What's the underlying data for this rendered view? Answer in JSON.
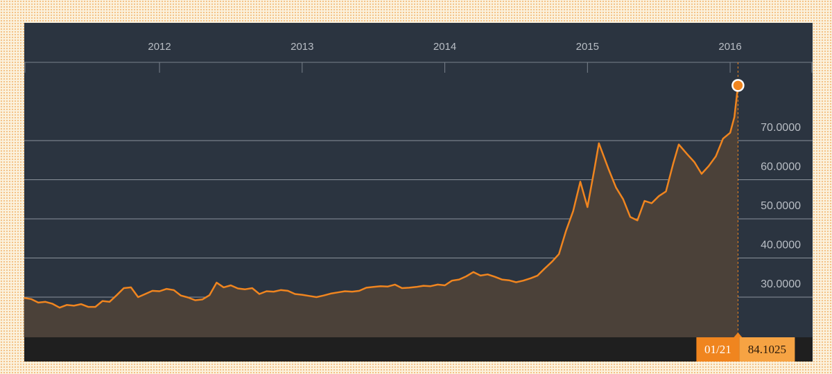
{
  "chart_data": {
    "type": "area",
    "color": "#f0851f",
    "fill_color": "#4b4139",
    "x": [
      2011.05,
      2011.1,
      2011.15,
      2011.2,
      2011.25,
      2011.3,
      2011.35,
      2011.4,
      2011.45,
      2011.5,
      2011.55,
      2011.6,
      2011.65,
      2011.7,
      2011.75,
      2011.8,
      2011.85,
      2011.9,
      2011.95,
      2012.0,
      2012.05,
      2012.1,
      2012.15,
      2012.2,
      2012.25,
      2012.3,
      2012.35,
      2012.4,
      2012.45,
      2012.5,
      2012.55,
      2012.6,
      2012.65,
      2012.7,
      2012.75,
      2012.8,
      2012.85,
      2012.9,
      2012.95,
      2013.0,
      2013.05,
      2013.1,
      2013.15,
      2013.2,
      2013.25,
      2013.3,
      2013.35,
      2013.4,
      2013.45,
      2013.5,
      2013.55,
      2013.6,
      2013.65,
      2013.7,
      2013.75,
      2013.8,
      2013.85,
      2013.9,
      2013.95,
      2014.0,
      2014.05,
      2014.1,
      2014.15,
      2014.2,
      2014.25,
      2014.3,
      2014.35,
      2014.4,
      2014.45,
      2014.5,
      2014.55,
      2014.6,
      2014.65,
      2014.7,
      2014.75,
      2014.8,
      2014.85,
      2014.9,
      2014.95,
      2015.0,
      2015.05,
      2015.08,
      2015.15,
      2015.2,
      2015.25,
      2015.3,
      2015.35,
      2015.4,
      2015.45,
      2015.5,
      2015.55,
      2015.6,
      2015.64,
      2015.7,
      2015.75,
      2015.8,
      2015.85,
      2015.9,
      2015.95,
      2016.0,
      2016.03,
      2016.055
    ],
    "values": [
      29.8,
      29.5,
      28.6,
      28.8,
      28.3,
      27.3,
      28.0,
      27.8,
      28.2,
      27.5,
      27.5,
      29.0,
      28.8,
      30.5,
      32.3,
      32.5,
      30.0,
      30.8,
      31.6,
      31.5,
      32.1,
      31.8,
      30.4,
      29.9,
      29.2,
      29.4,
      30.5,
      33.7,
      32.5,
      33.0,
      32.2,
      32.0,
      32.3,
      30.8,
      31.5,
      31.4,
      31.8,
      31.6,
      30.8,
      30.6,
      30.3,
      30.0,
      30.4,
      30.9,
      31.2,
      31.5,
      31.4,
      31.6,
      32.4,
      32.6,
      32.8,
      32.7,
      33.2,
      32.3,
      32.4,
      32.6,
      32.9,
      32.8,
      33.2,
      33.0,
      34.2,
      34.5,
      35.3,
      36.4,
      35.5,
      35.8,
      35.2,
      34.5,
      34.3,
      33.8,
      34.2,
      34.8,
      35.5,
      37.3,
      39.0,
      41.0,
      47.0,
      52.0,
      59.5,
      53.0,
      63.0,
      69.3,
      62.5,
      58.0,
      55.0,
      50.5,
      49.6,
      54.6,
      54.0,
      55.8,
      57.0,
      64.0,
      69.0,
      66.5,
      64.5,
      61.5,
      63.5,
      66.0,
      70.5,
      72.0,
      76.0,
      84.1025
    ],
    "marker_date": "01/21",
    "xlim": [
      2011.052,
      2016.578
    ],
    "xticks": [
      2012,
      2013,
      2014,
      2015,
      2016
    ],
    "ylim": [
      19.73,
      90
    ],
    "yticks": [
      {
        "value": 30,
        "label": "30.0000"
      },
      {
        "value": 40,
        "label": "40.0000"
      },
      {
        "value": 50,
        "label": "50.0000"
      },
      {
        "value": 60,
        "label": "60.0000"
      },
      {
        "value": 70,
        "label": "70.0000"
      }
    ],
    "grid": true
  }
}
